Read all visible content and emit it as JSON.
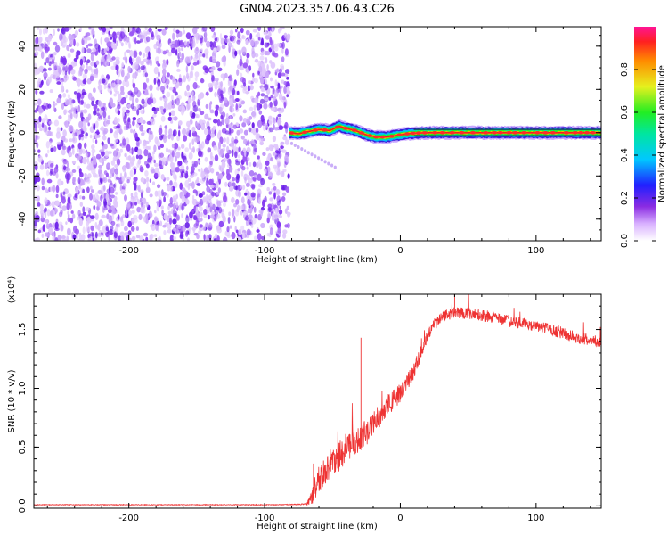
{
  "title": "GN04.2023.357.06.43.C26",
  "chart_data": [
    {
      "type": "heatmap",
      "title": "GN04.2023.357.06.43.C26",
      "xlabel": "Height of straight line (km)",
      "ylabel": "Frequency (Hz)",
      "xlim": [
        -270,
        148
      ],
      "ylim": [
        -50,
        49
      ],
      "xticks": [
        -200,
        -100,
        0,
        100
      ],
      "xtick_labels": [
        "-200",
        "-100",
        "0",
        "100"
      ],
      "yticks": [
        -40,
        -20,
        0,
        20,
        40
      ],
      "ytick_labels": [
        "-40",
        "-20",
        "0",
        "20",
        "40"
      ],
      "noise_region": {
        "x": [
          -270,
          -82
        ],
        "y": [
          -50,
          49
        ],
        "level": "0.05-0.2"
      },
      "signal_band": {
        "x": [
          -82,
          148
        ],
        "frequency_hz": 0,
        "peak_amplitude": 1.0
      },
      "frequency_track": [
        {
          "x": -82,
          "f": 0.0
        },
        {
          "x": -75,
          "f": -0.5
        },
        {
          "x": -68,
          "f": 0.5
        },
        {
          "x": -60,
          "f": 1.5
        },
        {
          "x": -52,
          "f": 1.0
        },
        {
          "x": -45,
          "f": 3.0
        },
        {
          "x": -40,
          "f": 2.0
        },
        {
          "x": -33,
          "f": 1.0
        },
        {
          "x": -25,
          "f": -1.0
        },
        {
          "x": -18,
          "f": -2.0
        },
        {
          "x": -10,
          "f": -2.0
        },
        {
          "x": -5,
          "f": -1.5
        },
        {
          "x": 0,
          "f": -1.0
        },
        {
          "x": 8,
          "f": -0.3
        },
        {
          "x": 20,
          "f": 0.0
        },
        {
          "x": 148,
          "f": 0.0
        }
      ],
      "faint_trail": {
        "x": [
          -80,
          -48
        ],
        "f": [
          -5,
          -16
        ]
      },
      "colorbar": {
        "label": "Normalized spectral amplitude",
        "range": [
          0,
          1
        ],
        "ticks": [
          0.0,
          0.2,
          0.4,
          0.6,
          0.8
        ],
        "tick_labels": [
          "0.0",
          "0.2",
          "0.4",
          "0.6",
          "0.8"
        ]
      }
    },
    {
      "type": "line",
      "xlabel": "Height of straight line (km)",
      "ylabel": "SNR (10 * v/v)",
      "exponent_label": "(x10⁴)",
      "xlim": [
        -270,
        148
      ],
      "ylim": [
        -0.02,
        1.8
      ],
      "xticks": [
        -200,
        -100,
        0,
        100
      ],
      "xtick_labels": [
        "-200",
        "-100",
        "0",
        "100"
      ],
      "yticks": [
        0.0,
        0.5,
        1.0,
        1.5
      ],
      "ytick_labels": [
        "0.0",
        "0.5",
        "1.0",
        "1.5"
      ],
      "color": "#ee3333",
      "series": [
        {
          "name": "SNR",
          "x": [
            -270,
            -150,
            -90,
            -70,
            -66,
            -63,
            -60,
            -55,
            -50,
            -45,
            -40,
            -35,
            -30,
            -25,
            -20,
            -15,
            -10,
            -5,
            0,
            5,
            10,
            15,
            20,
            25,
            30,
            35,
            40,
            50,
            60,
            70,
            80,
            90,
            100,
            110,
            120,
            130,
            140,
            148
          ],
          "y": [
            0.01,
            0.01,
            0.01,
            0.015,
            0.05,
            0.15,
            0.22,
            0.3,
            0.38,
            0.42,
            0.5,
            0.52,
            0.58,
            0.62,
            0.7,
            0.76,
            0.85,
            0.9,
            0.95,
            1.05,
            1.15,
            1.3,
            1.45,
            1.55,
            1.6,
            1.63,
            1.64,
            1.64,
            1.62,
            1.6,
            1.57,
            1.55,
            1.53,
            1.5,
            1.47,
            1.43,
            1.41,
            1.4
          ],
          "noise_amplitude": [
            0.003,
            0.003,
            0.003,
            0.005,
            0.05,
            0.1,
            0.12,
            0.12,
            0.13,
            0.13,
            0.12,
            0.12,
            0.12,
            0.11,
            0.1,
            0.1,
            0.1,
            0.09,
            0.09,
            0.08,
            0.07,
            0.06,
            0.05,
            0.05,
            0.05,
            0.05,
            0.05,
            0.05,
            0.05,
            0.05,
            0.05,
            0.05,
            0.05,
            0.05,
            0.05,
            0.05,
            0.05,
            0.05
          ]
        }
      ],
      "spikes": [
        {
          "x": -64,
          "y": 0.36
        },
        {
          "x": -29,
          "y": 1.43
        },
        {
          "x": 40,
          "y": 1.8
        }
      ]
    }
  ],
  "colors": {
    "noise": "#7d2ff0",
    "signal_high": "#ee2222",
    "line": "#ee3333"
  }
}
